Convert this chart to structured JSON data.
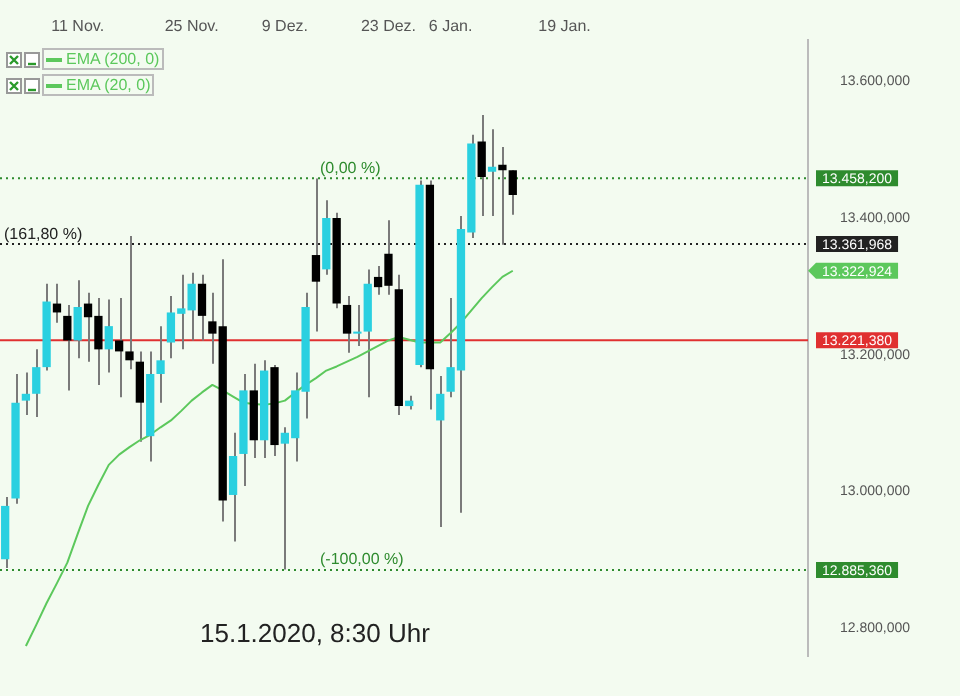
{
  "chart_data": {
    "type": "candlestick",
    "categories": [
      null,
      null,
      null,
      null,
      null,
      null,
      null,
      "11 Nov.",
      null,
      null,
      null,
      null,
      null,
      null,
      null,
      null,
      null,
      null,
      "25 Nov.",
      null,
      null,
      null,
      null,
      null,
      null,
      null,
      null,
      "9 Dez.",
      null,
      null,
      null,
      null,
      null,
      null,
      null,
      null,
      null,
      "23 Dez.",
      null,
      null,
      null,
      null,
      null,
      "6 Jan.",
      null,
      null,
      null,
      null,
      null,
      null,
      null,
      null,
      null,
      null,
      "19 Jan.",
      null,
      null,
      null,
      null,
      null,
      null,
      null,
      null,
      null,
      null,
      null,
      null,
      null,
      null,
      null,
      null,
      null,
      null,
      null,
      null,
      null,
      null,
      null
    ],
    "ohlc": [
      [
        12901,
        12992,
        12888,
        12979
      ],
      [
        12990,
        13172,
        12982,
        13130
      ],
      [
        13133,
        13174,
        13112,
        13143
      ],
      [
        13143,
        13208,
        13109,
        13182
      ],
      [
        13182,
        13304,
        13177,
        13278
      ],
      [
        13275,
        13304,
        13247,
        13262
      ],
      [
        13257,
        13273,
        13148,
        13221
      ],
      [
        13221,
        13309,
        13195,
        13270
      ],
      [
        13275,
        13291,
        13190,
        13255
      ],
      [
        13257,
        13283,
        13156,
        13208
      ],
      [
        13208,
        13281,
        13174,
        13242
      ],
      [
        13221,
        13283,
        13138,
        13205
      ],
      [
        13205,
        13374,
        13179,
        13192
      ],
      [
        13190,
        13205,
        13073,
        13130
      ],
      [
        13081,
        13205,
        13044,
        13172
      ],
      [
        13172,
        13242,
        13130,
        13192
      ],
      [
        13218,
        13286,
        13195,
        13262
      ],
      [
        13260,
        13317,
        13208,
        13268
      ],
      [
        13265,
        13320,
        13221,
        13304
      ],
      [
        13304,
        13317,
        13221,
        13257
      ],
      [
        13249,
        13291,
        13187,
        13231
      ],
      [
        13242,
        13340,
        12956,
        12987
      ],
      [
        12995,
        13086,
        12927,
        13052
      ],
      [
        13055,
        13172,
        13008,
        13148
      ],
      [
        13148,
        13187,
        13049,
        13075
      ],
      [
        13075,
        13192,
        13049,
        13177
      ],
      [
        13182,
        13185,
        13052,
        13068
      ],
      [
        13070,
        13094,
        12886,
        13086
      ],
      [
        13078,
        13174,
        13044,
        13148
      ],
      [
        13146,
        13291,
        13107,
        13270
      ],
      [
        13346,
        13458,
        13234,
        13307
      ],
      [
        13325,
        13426,
        13317,
        13400
      ],
      [
        13400,
        13408,
        13268,
        13275
      ],
      [
        13273,
        13286,
        13203,
        13231
      ],
      [
        13231,
        13273,
        13213,
        13234
      ],
      [
        13234,
        13325,
        13138,
        13304
      ],
      [
        13314,
        13330,
        13288,
        13299
      ],
      [
        13348,
        13397,
        13288,
        13301
      ],
      [
        13296,
        13317,
        13112,
        13125
      ],
      [
        13125,
        13140,
        13120,
        13133
      ],
      [
        13185,
        13455,
        13182,
        13449
      ],
      [
        13449,
        13455,
        13120,
        13179
      ],
      [
        13104,
        13169,
        12948,
        13143
      ],
      [
        13146,
        13283,
        13138,
        13182
      ],
      [
        13177,
        13403,
        12969,
        13384
      ],
      [
        13379,
        13522,
        13371,
        13509
      ],
      [
        13512,
        13551,
        13403,
        13460
      ],
      [
        13468,
        13530,
        13403,
        13475
      ],
      [
        13478,
        13504,
        13361,
        13470
      ],
      [
        13470,
        13470,
        13405,
        13434
      ],
      null,
      null,
      null,
      null,
      null,
      null,
      null,
      null,
      null,
      null,
      null,
      null,
      null,
      null,
      null,
      null,
      null,
      null,
      null,
      null,
      null,
      null,
      null,
      null,
      null,
      null,
      null,
      null
    ],
    "colors": [
      "#2ad0e0",
      "#2ad0e0",
      "#2ad0e0",
      "#2ad0e0",
      "#2ad0e0",
      "#000000",
      "#000000",
      "#2ad0e0",
      "#000000",
      "#000000",
      "#2ad0e0",
      "#000000",
      "#000000",
      "#000000",
      "#2ad0e0",
      "#2ad0e0",
      "#2ad0e0",
      "#2ad0e0",
      "#2ad0e0",
      "#000000",
      "#000000",
      "#000000",
      "#2ad0e0",
      "#2ad0e0",
      "#000000",
      "#2ad0e0",
      "#000000",
      "#2ad0e0",
      "#2ad0e0",
      "#2ad0e0",
      "#000000",
      "#2ad0e0",
      "#000000",
      "#000000",
      "#2ad0e0",
      "#2ad0e0",
      "#000000",
      "#000000",
      "#000000",
      "#2ad0e0",
      "#2ad0e0",
      "#000000",
      "#2ad0e0",
      "#2ad0e0",
      "#2ad0e0",
      "#2ad0e0",
      "#000000",
      "#2ad0e0",
      "#000000",
      "#000000",
      null,
      null,
      null,
      null,
      null,
      null,
      null,
      null,
      null,
      null,
      null,
      null,
      null,
      null,
      null,
      null,
      null,
      null,
      null,
      null,
      null,
      null,
      null,
      null,
      null,
      null,
      null,
      null
    ],
    "series": [
      {
        "name": "EMA (200, 0)",
        "type": "line",
        "color": "#5cc85c",
        "values": [
          null,
          null,
          null,
          null,
          null,
          null,
          null,
          null,
          null,
          null,
          null,
          null,
          null,
          null,
          null,
          null,
          null,
          null,
          null,
          null,
          null,
          null,
          null,
          null,
          null,
          null,
          null,
          null,
          null,
          null,
          null,
          null,
          null,
          null,
          null,
          null,
          null,
          null,
          null,
          null,
          null,
          null,
          null,
          null,
          null,
          null,
          null,
          null,
          null,
          null,
          null,
          null,
          null,
          null,
          null,
          null,
          null,
          null,
          null,
          null,
          null,
          null,
          null,
          null,
          null,
          null,
          null,
          null,
          null,
          null,
          null,
          null,
          null,
          null,
          null,
          null,
          null,
          null
        ]
      },
      {
        "name": "EMA (20, 0)",
        "type": "line",
        "color": "#5cc85c",
        "values": [
          null,
          null,
          12774,
          12805,
          12837,
          12866,
          12896,
          12938,
          12979,
          13010,
          13039,
          13054,
          13065,
          13075,
          13083,
          13094,
          13104,
          13118,
          13133,
          13145,
          13156,
          13148,
          13139,
          13130,
          13128,
          13127,
          13129,
          13133,
          13145,
          13156,
          13166,
          13177,
          13183,
          13190,
          13197,
          13205,
          13213,
          13221,
          13226,
          13222,
          13218,
          13218,
          13218,
          13232,
          13247,
          13265,
          13283,
          13299,
          13314,
          13323,
          null,
          null,
          null,
          null,
          null,
          null,
          null,
          null,
          null,
          null,
          null,
          null,
          null,
          null,
          null,
          null,
          null,
          null,
          null,
          null,
          null,
          null,
          null,
          null,
          null,
          null,
          null,
          null
        ]
      }
    ],
    "ylim": [
      12760,
      13660
    ],
    "yticks": [
      {
        "value": 12800,
        "label": "12.800,000"
      },
      {
        "value": 13000,
        "label": "13.000,000"
      },
      {
        "value": 13200,
        "label": "13.200,000"
      },
      {
        "value": 13400,
        "label": "13.400,000"
      },
      {
        "value": 13600,
        "label": "13.600,000"
      }
    ],
    "ref_lines": [
      {
        "axis": "y",
        "value": 13458.2,
        "label": "13.458,200",
        "color": "#2e8b2e",
        "line_style": "dotted"
      },
      {
        "axis": "y",
        "value": 13361.968,
        "label": "13.361,968",
        "color": "#222222",
        "line_style": "dotted"
      },
      {
        "axis": "y",
        "value": 12885.36,
        "label": "12.885,360",
        "color": "#2e8b2e",
        "line_style": "dotted"
      },
      {
        "axis": "y",
        "value": 13221.38,
        "label": "13.221,380",
        "color": "#e03030",
        "line_style": "solid"
      }
    ],
    "annotations": [
      {
        "text": "(0,00 %)",
        "y": 13458.2
      },
      {
        "text": "(161,80 %)",
        "y": 13361.968
      },
      {
        "text": "(-100,00 %)",
        "y": 12885.36
      },
      "13.322,924",
      "15.1.2020, 8:30 Uhr"
    ],
    "legend": "top left",
    "grid": false
  }
}
